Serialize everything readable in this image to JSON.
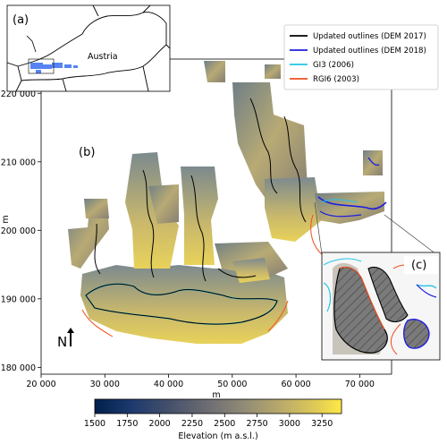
{
  "panels": {
    "a": "(a)",
    "b": "(b)",
    "c": "(c)"
  },
  "inset_a": {
    "country_label": "Austria"
  },
  "north_arrow": {
    "label": "N"
  },
  "legend": {
    "position": "top-right",
    "items": [
      {
        "label": "Updated outlines (DEM 2017)",
        "color": "#000000"
      },
      {
        "label": "Updated outlines (DEM 2018)",
        "color": "#1f1fe0"
      },
      {
        "label": "GI3 (2006)",
        "color": "#22c4e6"
      },
      {
        "label": "RGI6 (2003)",
        "color": "#f05020"
      }
    ]
  },
  "axes": {
    "xlabel": "m",
    "ylabel": "m",
    "x_ticks": [
      "20 000",
      "30 000",
      "40 000",
      "50 000",
      "60 000",
      "70 000"
    ],
    "y_ticks": [
      "180 000",
      "190 000",
      "200 000",
      "210 000",
      "220 000"
    ],
    "x_range": [
      20000,
      75000
    ],
    "y_range": [
      179000,
      225000
    ]
  },
  "colorbar": {
    "label": "Elevation (m a.s.l.)",
    "ticks": [
      "1500",
      "1750",
      "2000",
      "2250",
      "2500",
      "2750",
      "3000",
      "3250"
    ],
    "range": [
      1500,
      3400
    ],
    "colormap": "cividis",
    "color_low": "#00204c",
    "color_high": "#ffe945"
  }
}
